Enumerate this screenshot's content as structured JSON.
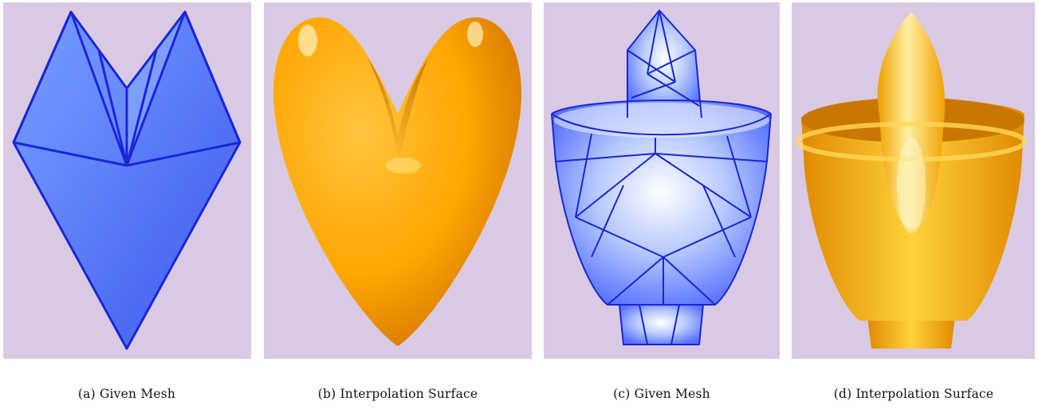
{
  "figure": {
    "panels": [
      {
        "caption": "(a) Given Mesh",
        "content": "blue-triangle-mesh-heart"
      },
      {
        "caption": "(b) Interpolation Surface",
        "content": "orange-smooth-surface-heart"
      },
      {
        "caption": "(c) Given Mesh",
        "content": "blue-triangle-mesh-vase"
      },
      {
        "caption": "(d) Interpolation Surface",
        "content": "orange-smooth-surface-vase"
      }
    ]
  },
  "colors": {
    "background": "#d9c9e2",
    "mesh_fill": "#5a7bff",
    "mesh_edge": "#1a26d6",
    "surface": "#ffa500"
  }
}
